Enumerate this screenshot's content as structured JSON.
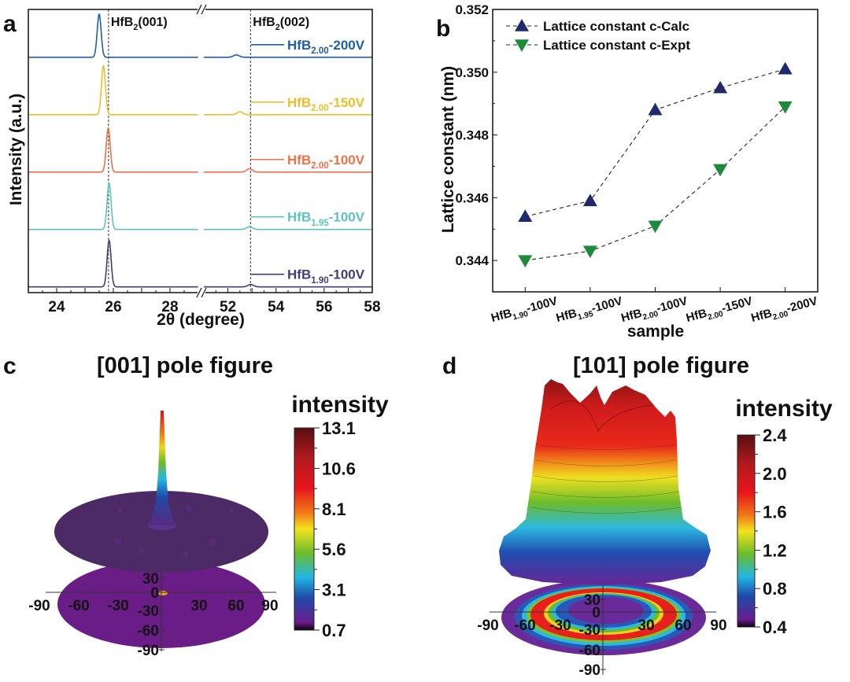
{
  "panel_labels": {
    "a": "a",
    "b": "b",
    "c": "c",
    "d": "d"
  },
  "chart_data": [
    {
      "id": "a",
      "type": "line",
      "xlabel": "2θ (degree)",
      "ylabel": "Intensity (a.u.)",
      "x_broken_axis": true,
      "x_segments": [
        [
          23,
          29
        ],
        [
          51,
          58
        ]
      ],
      "xticks": [
        24,
        26,
        28,
        52,
        54,
        56,
        58
      ],
      "ylim": [
        -0.12,
        5.8
      ],
      "y_ticks_shown": false,
      "reference_lines": [
        {
          "two_theta": 25.83,
          "label": {
            "main": "HfB",
            "sub": "2",
            "suffix": "(001)"
          }
        },
        {
          "two_theta": 52.94,
          "label": {
            "main": "HfB",
            "sub": "2",
            "suffix": "(002)"
          }
        }
      ],
      "series": [
        {
          "name": {
            "main": "HfB",
            "sub": "2.00",
            "suffix": "-200V"
          },
          "color": "#1f5fa8",
          "offset": 4.8,
          "peaks": [
            {
              "two_theta": 25.5,
              "intensity": 0.9
            },
            {
              "two_theta": 52.35,
              "intensity": 0.05
            }
          ]
        },
        {
          "name": {
            "main": "HfB",
            "sub": "2.00",
            "suffix": "-150V"
          },
          "color": "#f0bd2a",
          "offset": 3.6,
          "peaks": [
            {
              "two_theta": 25.65,
              "intensity": 1.02
            },
            {
              "two_theta": 52.5,
              "intensity": 0.06
            }
          ]
        },
        {
          "name": {
            "main": "HfB",
            "sub": "2.00",
            "suffix": "-100V"
          },
          "color": "#ee7048",
          "offset": 2.4,
          "peaks": [
            {
              "two_theta": 25.82,
              "intensity": 0.92
            },
            {
              "two_theta": 52.9,
              "intensity": 0.07
            }
          ]
        },
        {
          "name": {
            "main": "HfB",
            "sub": "1.95",
            "suffix": "-100V"
          },
          "color": "#5cc3c0",
          "offset": 1.2,
          "peaks": [
            {
              "two_theta": 25.85,
              "intensity": 0.97
            },
            {
              "two_theta": 52.9,
              "intensity": 0.06
            }
          ]
        },
        {
          "name": {
            "main": "HfB",
            "sub": "1.90",
            "suffix": "-100V"
          },
          "color": "#463b74",
          "offset": 0.0,
          "peaks": [
            {
              "two_theta": 25.85,
              "intensity": 0.97
            },
            {
              "two_theta": 52.95,
              "intensity": 0.05
            }
          ]
        }
      ]
    },
    {
      "id": "b",
      "type": "line",
      "xlabel": "sample",
      "ylabel": "Lattice constant (nm)",
      "ylim": [
        0.343,
        0.352
      ],
      "yticks": [
        "0.344",
        "0.346",
        "0.348",
        "0.350",
        "0.352"
      ],
      "legend_position": "top-left",
      "categories": [
        {
          "main": "HfB",
          "sub": "1.90",
          "suffix": "-100V"
        },
        {
          "main": "HfB",
          "sub": "1.95",
          "suffix": "-100V"
        },
        {
          "main": "HfB",
          "sub": "2.00",
          "suffix": "-100V"
        },
        {
          "main": "HfB",
          "sub": "2.00",
          "suffix": "-150V"
        },
        {
          "main": "HfB",
          "sub": "2.00",
          "suffix": "-200V"
        }
      ],
      "series": [
        {
          "name": "Lattice constant c-Calc",
          "marker": "triangle-up",
          "color": "#1f2a6b",
          "values": [
            0.3454,
            0.3459,
            0.3488,
            0.3495,
            0.3501
          ]
        },
        {
          "name": "Lattice constant c-Expt",
          "marker": "triangle-down",
          "color": "#1e8a3e",
          "values": [
            0.344,
            0.3443,
            0.3451,
            0.3469,
            0.3489
          ]
        }
      ]
    },
    {
      "id": "c",
      "type": "surface",
      "title": "[001] pole figure",
      "colorbar_label": "intensity",
      "colorbar_ticks": [
        "13.1",
        "10.6",
        "8.1",
        "5.6",
        "3.1",
        "0.7"
      ],
      "colormap": "jet",
      "x_ticks": [
        "-90",
        "-60",
        "-30",
        "30",
        "60",
        "90"
      ],
      "y_ticks": [
        "30",
        "0",
        "-30",
        "-60",
        "-90"
      ],
      "peak_location": "center (0,0)"
    },
    {
      "id": "d",
      "type": "surface",
      "title": "[101] pole figure",
      "colorbar_label": "intensity",
      "colorbar_ticks": [
        "2.4",
        "2.0",
        "1.6",
        "1.2",
        "0.8",
        "0.4"
      ],
      "colormap": "jet",
      "x_ticks": [
        "-90",
        "-60",
        "-30",
        "30",
        "60",
        "90"
      ],
      "y_ticks": [
        "30",
        "0",
        "-30",
        "-60",
        "-90"
      ],
      "peak_location": "ring at ~45-60 deg tilt"
    }
  ]
}
